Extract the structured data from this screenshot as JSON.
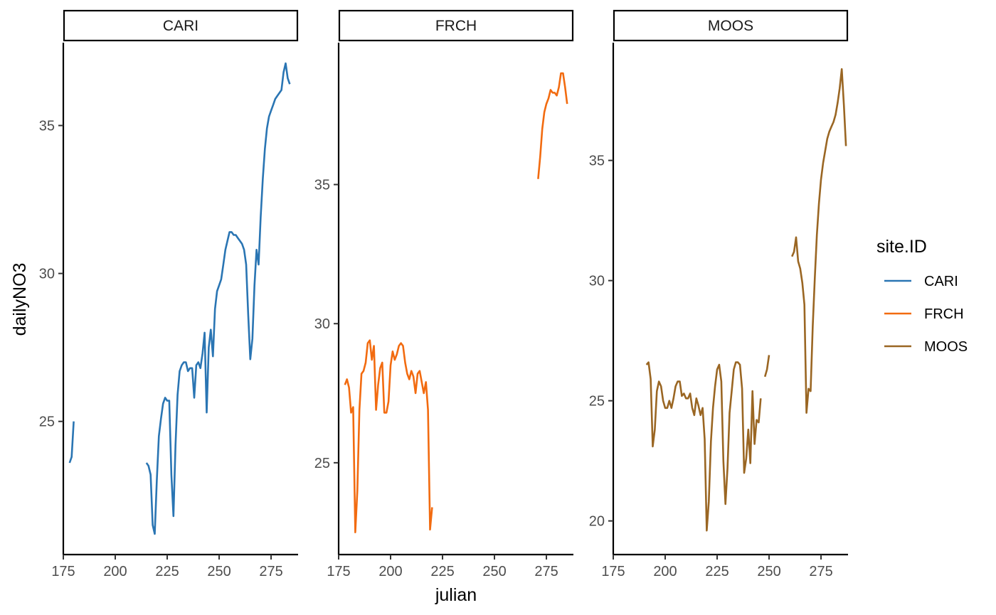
{
  "chart_data": {
    "type": "line",
    "xlabel": "julian",
    "ylabel": "dailyNO3",
    "legend": {
      "title": "site.ID",
      "placement": "right"
    },
    "grid": false,
    "facets": "free y scales per panel, shared x axis",
    "panels": [
      {
        "site": "CARI",
        "color": "#2a75b3",
        "xlim": [
          175,
          288
        ],
        "ylim": [
          20.5,
          37.8
        ],
        "xticks": [
          175,
          200,
          225,
          250,
          275
        ],
        "yticks": [
          25,
          30,
          35
        ],
        "segments": [
          [
            [
              178,
              23.6
            ],
            [
              179,
              23.8
            ],
            [
              180,
              25.0
            ]
          ],
          [
            [
              215,
              23.6
            ],
            [
              216,
              23.5
            ],
            [
              217,
              23.2
            ],
            [
              218,
              21.5
            ],
            [
              219,
              21.2
            ],
            [
              220,
              23.0
            ],
            [
              221,
              24.5
            ],
            [
              222,
              25.1
            ],
            [
              223,
              25.6
            ],
            [
              224,
              25.8
            ],
            [
              225,
              25.7
            ],
            [
              226,
              25.7
            ],
            [
              227,
              23.2
            ],
            [
              228,
              21.8
            ],
            [
              229,
              24.2
            ],
            [
              230,
              25.9
            ],
            [
              231,
              26.7
            ],
            [
              232,
              26.9
            ],
            [
              233,
              27.0
            ],
            [
              234,
              27.0
            ],
            [
              235,
              26.7
            ],
            [
              236,
              26.8
            ],
            [
              237,
              26.8
            ],
            [
              238,
              25.8
            ],
            [
              239,
              26.9
            ],
            [
              240,
              27.0
            ],
            [
              241,
              26.8
            ],
            [
              242,
              27.3
            ],
            [
              243,
              28.0
            ],
            [
              244,
              25.3
            ],
            [
              245,
              27.5
            ],
            [
              246,
              28.1
            ],
            [
              247,
              27.2
            ],
            [
              248,
              28.8
            ],
            [
              249,
              29.4
            ],
            [
              250,
              29.6
            ],
            [
              251,
              29.8
            ],
            [
              252,
              30.3
            ],
            [
              253,
              30.8
            ],
            [
              254,
              31.1
            ],
            [
              255,
              31.4
            ],
            [
              256,
              31.4
            ],
            [
              257,
              31.3
            ],
            [
              258,
              31.3
            ],
            [
              259,
              31.2
            ],
            [
              260,
              31.1
            ],
            [
              261,
              31.0
            ],
            [
              262,
              30.8
            ],
            [
              263,
              30.3
            ],
            [
              264,
              28.6
            ],
            [
              265,
              27.1
            ],
            [
              266,
              27.8
            ],
            [
              267,
              29.6
            ],
            [
              268,
              30.8
            ],
            [
              269,
              30.3
            ],
            [
              270,
              31.9
            ],
            [
              271,
              33.2
            ],
            [
              272,
              34.2
            ],
            [
              273,
              34.9
            ],
            [
              274,
              35.3
            ],
            [
              275,
              35.5
            ],
            [
              276,
              35.7
            ],
            [
              277,
              35.9
            ],
            [
              278,
              36.0
            ],
            [
              279,
              36.1
            ],
            [
              280,
              36.2
            ],
            [
              281,
              36.8
            ],
            [
              282,
              37.1
            ],
            [
              283,
              36.6
            ],
            [
              284,
              36.4
            ]
          ]
        ]
      },
      {
        "site": "FRCH",
        "color": "#f26b10",
        "xlim": [
          175,
          288
        ],
        "ylim": [
          21.7,
          40.1
        ],
        "xticks": [
          175,
          200,
          225,
          250,
          275
        ],
        "yticks": [
          25,
          30,
          35
        ],
        "segments": [
          [
            [
              178,
              27.8
            ],
            [
              179,
              28.0
            ],
            [
              180,
              27.7
            ],
            [
              181,
              26.8
            ],
            [
              182,
              27.0
            ],
            [
              183,
              22.5
            ],
            [
              184,
              24.0
            ],
            [
              185,
              26.9
            ],
            [
              186,
              28.2
            ],
            [
              187,
              28.3
            ],
            [
              188,
              28.6
            ],
            [
              189,
              29.3
            ],
            [
              190,
              29.4
            ],
            [
              191,
              28.7
            ],
            [
              192,
              29.2
            ],
            [
              193,
              26.9
            ],
            [
              194,
              27.8
            ],
            [
              195,
              28.4
            ],
            [
              196,
              28.6
            ],
            [
              197,
              26.8
            ],
            [
              198,
              26.8
            ],
            [
              199,
              27.2
            ],
            [
              200,
              28.5
            ],
            [
              201,
              29.0
            ],
            [
              202,
              28.7
            ],
            [
              203,
              28.9
            ],
            [
              204,
              29.2
            ],
            [
              205,
              29.3
            ],
            [
              206,
              29.2
            ],
            [
              207,
              28.6
            ],
            [
              208,
              28.2
            ],
            [
              209,
              28.0
            ],
            [
              210,
              28.3
            ],
            [
              211,
              28.1
            ],
            [
              212,
              27.5
            ],
            [
              213,
              28.2
            ],
            [
              214,
              28.3
            ],
            [
              215,
              27.9
            ],
            [
              216,
              27.5
            ],
            [
              217,
              27.9
            ],
            [
              218,
              26.9
            ],
            [
              219,
              22.6
            ],
            [
              220,
              23.4
            ]
          ],
          [
            [
              271,
              35.2
            ],
            [
              272,
              36.0
            ],
            [
              273,
              37.0
            ],
            [
              274,
              37.6
            ],
            [
              275,
              37.9
            ],
            [
              276,
              38.1
            ],
            [
              277,
              38.4
            ],
            [
              278,
              38.3
            ],
            [
              279,
              38.3
            ],
            [
              280,
              38.2
            ],
            [
              281,
              38.5
            ],
            [
              282,
              39.0
            ],
            [
              283,
              39.0
            ],
            [
              284,
              38.5
            ],
            [
              285,
              37.9
            ]
          ]
        ]
      },
      {
        "site": "MOOS",
        "color": "#9a6623",
        "xlim": [
          175,
          288
        ],
        "ylim": [
          18.6,
          39.9
        ],
        "xticks": [
          175,
          200,
          225,
          250,
          275
        ],
        "yticks": [
          20,
          25,
          30,
          35
        ],
        "segments": [
          [
            [
              191,
              26.5
            ],
            [
              192,
              26.6
            ],
            [
              193,
              25.9
            ],
            [
              194,
              23.1
            ],
            [
              195,
              23.8
            ],
            [
              196,
              25.4
            ],
            [
              197,
              25.8
            ],
            [
              198,
              25.6
            ],
            [
              199,
              25.0
            ],
            [
              200,
              24.7
            ],
            [
              201,
              24.7
            ],
            [
              202,
              25.0
            ],
            [
              203,
              24.7
            ],
            [
              204,
              25.1
            ],
            [
              205,
              25.6
            ],
            [
              206,
              25.8
            ],
            [
              207,
              25.8
            ],
            [
              208,
              25.2
            ],
            [
              209,
              25.3
            ],
            [
              210,
              25.1
            ],
            [
              211,
              25.1
            ],
            [
              212,
              25.3
            ],
            [
              213,
              24.7
            ],
            [
              214,
              24.4
            ],
            [
              215,
              25.1
            ],
            [
              216,
              24.8
            ],
            [
              217,
              24.4
            ],
            [
              218,
              24.7
            ],
            [
              219,
              23.4
            ],
            [
              220,
              19.6
            ],
            [
              221,
              20.8
            ],
            [
              222,
              23.3
            ],
            [
              223,
              24.7
            ],
            [
              224,
              25.6
            ],
            [
              225,
              26.3
            ],
            [
              226,
              26.5
            ],
            [
              227,
              25.8
            ],
            [
              228,
              22.5
            ],
            [
              229,
              20.7
            ],
            [
              230,
              22.2
            ],
            [
              231,
              24.5
            ],
            [
              232,
              25.4
            ],
            [
              233,
              26.3
            ],
            [
              234,
              26.6
            ],
            [
              235,
              26.6
            ],
            [
              236,
              26.5
            ],
            [
              237,
              25.5
            ],
            [
              238,
              22.0
            ],
            [
              239,
              22.6
            ],
            [
              240,
              23.8
            ],
            [
              241,
              22.4
            ],
            [
              242,
              25.4
            ],
            [
              243,
              23.2
            ],
            [
              244,
              24.2
            ],
            [
              245,
              24.1
            ],
            [
              246,
              25.1
            ]
          ],
          [
            [
              248,
              26.0
            ],
            [
              249,
              26.3
            ],
            [
              250,
              26.9
            ]
          ],
          [
            [
              261,
              31.0
            ],
            [
              262,
              31.2
            ],
            [
              263,
              31.8
            ],
            [
              264,
              30.8
            ],
            [
              265,
              30.5
            ],
            [
              266,
              29.9
            ],
            [
              267,
              29.0
            ],
            [
              268,
              24.5
            ],
            [
              269,
              25.5
            ],
            [
              270,
              25.4
            ],
            [
              271,
              28.1
            ],
            [
              272,
              30.1
            ],
            [
              273,
              31.9
            ],
            [
              274,
              33.2
            ],
            [
              275,
              34.2
            ],
            [
              276,
              34.9
            ],
            [
              277,
              35.4
            ],
            [
              278,
              35.9
            ],
            [
              279,
              36.2
            ],
            [
              280,
              36.4
            ],
            [
              281,
              36.6
            ],
            [
              282,
              36.9
            ],
            [
              283,
              37.4
            ],
            [
              284,
              38.0
            ],
            [
              285,
              38.8
            ],
            [
              286,
              37.3
            ],
            [
              287,
              35.6
            ]
          ]
        ]
      }
    ]
  }
}
